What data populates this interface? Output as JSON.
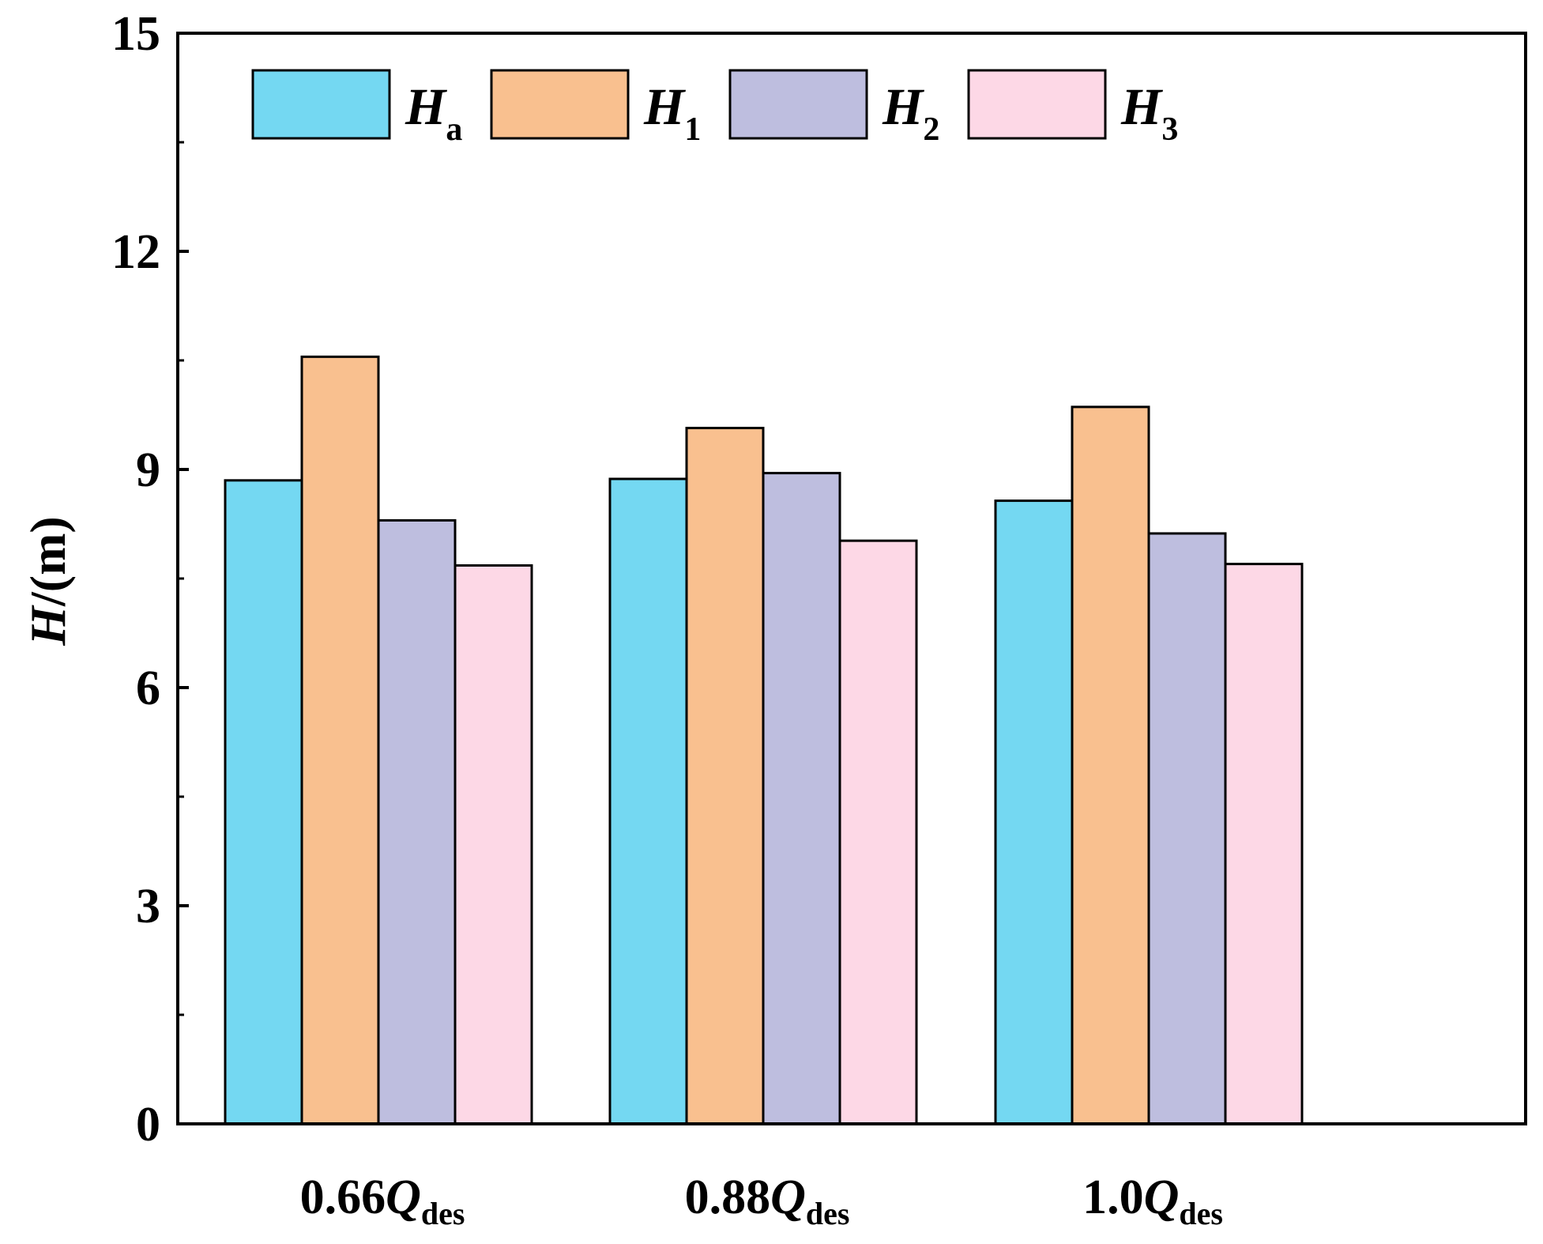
{
  "chart_data": {
    "type": "bar",
    "categories": [
      {
        "prefix": "0.66",
        "var": "Q",
        "sub": "des"
      },
      {
        "prefix": "0.88",
        "var": "Q",
        "sub": "des"
      },
      {
        "prefix": "1.0",
        "var": "Q",
        "sub": "des"
      }
    ],
    "series": [
      {
        "name": "H",
        "sub": "a",
        "color": "#74D8F2",
        "values": [
          8.85,
          8.87,
          8.57
        ]
      },
      {
        "name": "H",
        "sub": "1",
        "color": "#F9C08F",
        "values": [
          10.55,
          9.57,
          9.86
        ]
      },
      {
        "name": "H",
        "sub": "2",
        "color": "#BEBEDF",
        "values": [
          8.3,
          8.95,
          8.12
        ]
      },
      {
        "name": "H",
        "sub": "3",
        "color": "#FDD8E6",
        "values": [
          7.68,
          8.02,
          7.7
        ]
      }
    ],
    "ylabel": {
      "var": "H",
      "rest": "/(m)"
    },
    "ylim": [
      0,
      15
    ],
    "yticks": [
      "0",
      "3",
      "6",
      "9",
      "12",
      "15"
    ],
    "ytick_values": [
      0,
      3,
      6,
      9,
      12,
      15
    ],
    "legend_position": "top-left",
    "grid": false
  }
}
